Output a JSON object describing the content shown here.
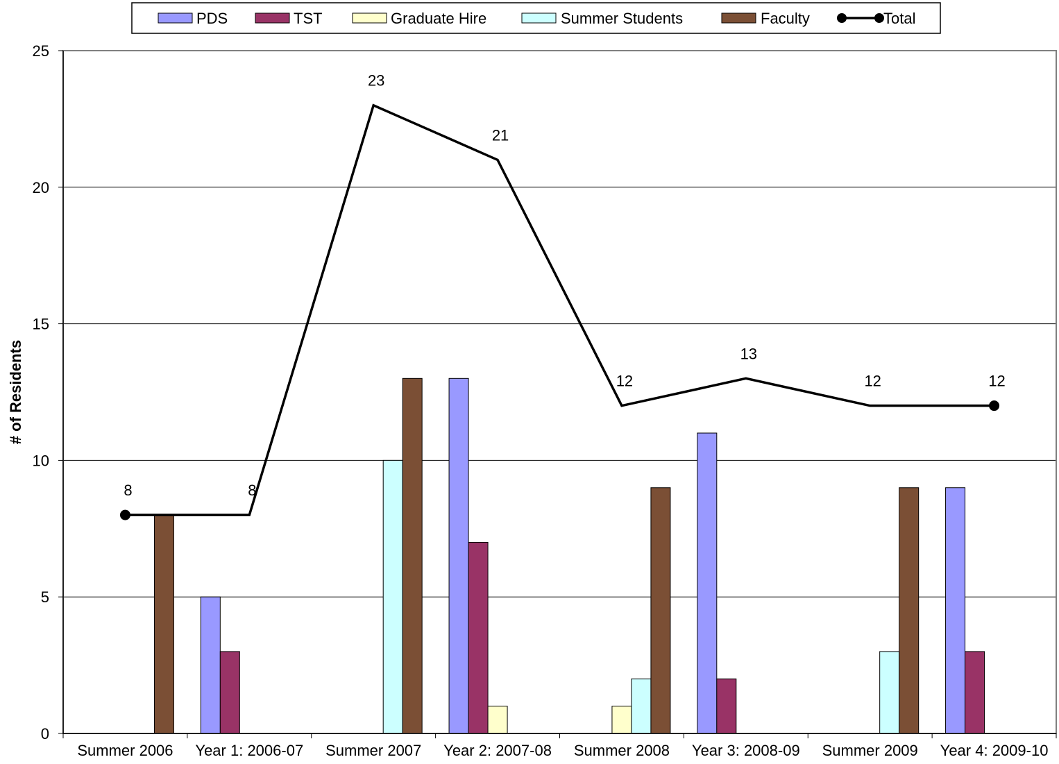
{
  "chart_data": {
    "type": "bar",
    "title": "",
    "xlabel": "",
    "ylabel": "# of Residents",
    "ylim": [
      0,
      25
    ],
    "yticks": [
      "0",
      "5",
      "10",
      "15",
      "20",
      "25"
    ],
    "grid": true,
    "legend_position": "top",
    "categories": [
      "Summer 2006",
      "Year 1: 2006-07",
      "Summer 2007",
      "Year 2: 2007-08",
      "Summer 2008",
      "Year 3: 2008-09",
      "Summer 2009",
      "Year 4: 2009-10"
    ],
    "series": [
      {
        "name": "PDS",
        "color": "#9999ff",
        "values": [
          0,
          5,
          0,
          13,
          0,
          11,
          0,
          9
        ]
      },
      {
        "name": "TST",
        "color": "#993366",
        "values": [
          0,
          3,
          0,
          7,
          0,
          2,
          0,
          3
        ]
      },
      {
        "name": "Graduate Hire",
        "color": "#ffffcc",
        "values": [
          0,
          0,
          0,
          1,
          1,
          0,
          0,
          0
        ]
      },
      {
        "name": "Summer Students",
        "color": "#ccffff",
        "values": [
          0,
          0,
          10,
          0,
          2,
          0,
          3,
          0
        ]
      },
      {
        "name": "Faculty",
        "color": "#7b4f35",
        "values": [
          8,
          0,
          13,
          0,
          9,
          0,
          9,
          0
        ]
      }
    ],
    "line_series": {
      "name": "Total",
      "color": "#000000",
      "values": [
        8,
        8,
        23,
        21,
        12,
        13,
        12,
        12
      ],
      "labels": [
        "8",
        "8",
        "23",
        "21",
        "12",
        "13",
        "12",
        "12"
      ]
    }
  }
}
